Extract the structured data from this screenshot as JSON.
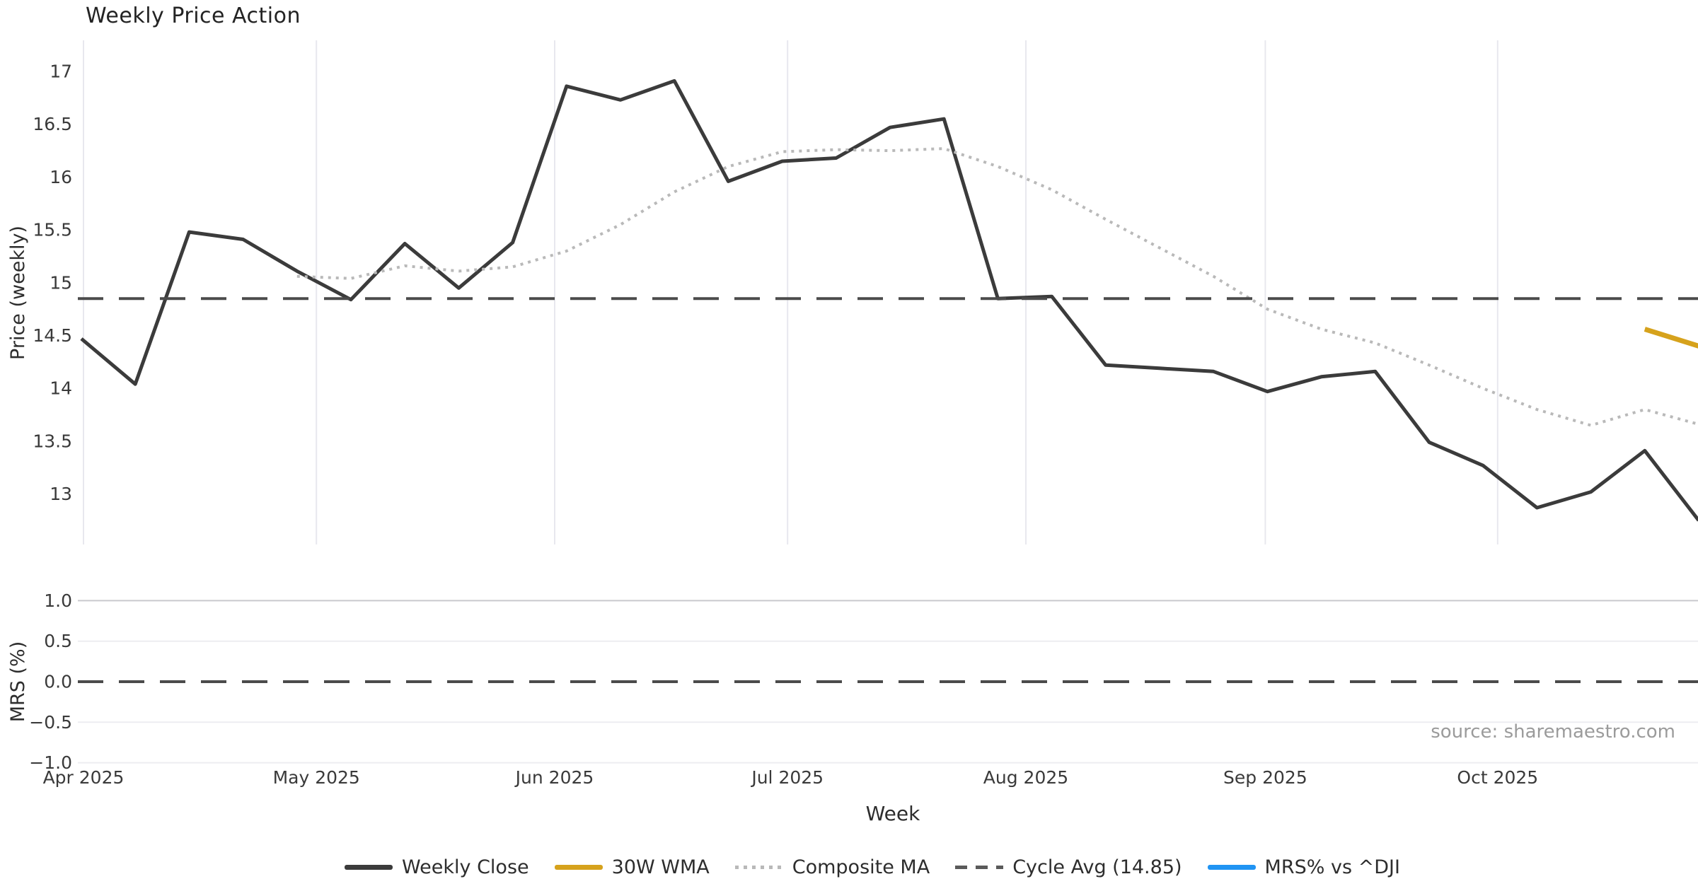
{
  "title": "Weekly Price Action",
  "source_note": "source: sharemaestro.com",
  "colors": {
    "weekly_close": "#3b3b3b",
    "wma_30w": "#d6a21c",
    "composite_ma": "#b9b9b9",
    "cycle_avg": "#4b4b4b",
    "mrs": "#2094f3",
    "grid_vertical": "#e8e8ee",
    "grid_mrs_major": "#c9c9cd",
    "grid_mrs_minor": "#ededf1",
    "tick_text": "#3a3a3a",
    "label_text": "#2d2d2d",
    "muted_text": "#9b9b9b",
    "background": "#ffffff"
  },
  "legend": {
    "items": [
      {
        "label": "Weekly Close",
        "swatch": "solid-dark"
      },
      {
        "label": "30W WMA",
        "swatch": "solid-gold"
      },
      {
        "label": "Composite MA",
        "swatch": "dotted-gray"
      },
      {
        "label": "Cycle Avg (14.85)",
        "swatch": "dashed-dark"
      },
      {
        "label": "MRS% vs ^DJI",
        "swatch": "solid-blue"
      }
    ]
  },
  "chart_data": [
    {
      "type": "line",
      "panel": "price",
      "title": "Weekly Price Action",
      "xlabel": "Week",
      "ylabel": "Price (weekly)",
      "x_unit": "weekly closes, Apr 2025 through Oct 2025 (week index 0-30)",
      "ylim": [
        12.52,
        17.3
      ],
      "xlim_weeks": [
        -0.07,
        29.99
      ],
      "grid": "vertical-month-gridlines-only",
      "yticks": [
        17,
        16.5,
        16,
        15.5,
        15,
        14.5,
        14,
        13.5,
        13
      ],
      "ytick_labels": [
        "17",
        "16.5",
        "16",
        "15.5",
        "15",
        "14.5",
        "14",
        "13.5",
        "13"
      ],
      "month_ticks": {
        "labels": [
          "Apr 2025",
          "May 2025",
          "Jun 2025",
          "Jul 2025",
          "Aug 2025",
          "Sep 2025",
          "Oct 2025"
        ],
        "week_positions": [
          0.04,
          4.36,
          8.78,
          13.1,
          17.52,
          21.96,
          26.27
        ]
      },
      "series": [
        {
          "name": "Weekly Close",
          "type": "line",
          "style": "solid",
          "color_key": "weekly_close",
          "line_width": 5,
          "start_week": 0,
          "values": [
            14.47,
            14.04,
            15.48,
            15.41,
            15.11,
            14.84,
            15.37,
            14.95,
            15.38,
            16.86,
            16.73,
            16.91,
            15.96,
            16.15,
            16.18,
            16.47,
            16.55,
            14.85,
            14.87,
            14.22,
            14.19,
            14.16,
            13.97,
            14.11,
            14.16,
            13.49,
            13.27,
            12.87,
            13.02,
            13.41,
            12.75
          ]
        },
        {
          "name": "30W WMA",
          "type": "line",
          "style": "solid",
          "color_key": "wma_30w",
          "line_width": 7,
          "start_week": 29,
          "values": [
            14.56,
            14.4
          ]
        },
        {
          "name": "Composite MA",
          "type": "line",
          "style": "dotted",
          "color_key": "composite_ma",
          "line_width": 4,
          "start_week": 4,
          "values": [
            15.06,
            15.04,
            15.16,
            15.11,
            15.15,
            15.3,
            15.55,
            15.86,
            16.1,
            16.24,
            16.26,
            16.25,
            16.27,
            16.1,
            15.88,
            15.6,
            15.33,
            15.06,
            14.75,
            14.56,
            14.43,
            14.22,
            14.0,
            13.8,
            13.65,
            13.8,
            13.66
          ]
        },
        {
          "name": "Cycle Avg (14.85)",
          "type": "hline",
          "style": "dashed",
          "color_key": "cycle_avg",
          "line_width": 4,
          "value": 14.85
        }
      ]
    },
    {
      "type": "line",
      "panel": "mrs",
      "ylabel": "MRS (%)",
      "ylim": [
        -1.1,
        1.1
      ],
      "grid": "horizontal-gridlines-only",
      "yticks": [
        1.0,
        0.5,
        0.0,
        -0.5,
        -1.0
      ],
      "ytick_labels": [
        "1.0",
        "0.5",
        "0.0",
        "−0.5",
        "−1.0"
      ],
      "series": [
        {
          "name": "MRS% vs ^DJI",
          "type": "line",
          "style": "solid",
          "color_key": "mrs",
          "line_width": 5,
          "start_week": 0,
          "values": []
        },
        {
          "name": "Zero line",
          "type": "hline",
          "style": "dashed",
          "color_key": "cycle_avg",
          "line_width": 4,
          "value": 0.0
        }
      ]
    }
  ]
}
